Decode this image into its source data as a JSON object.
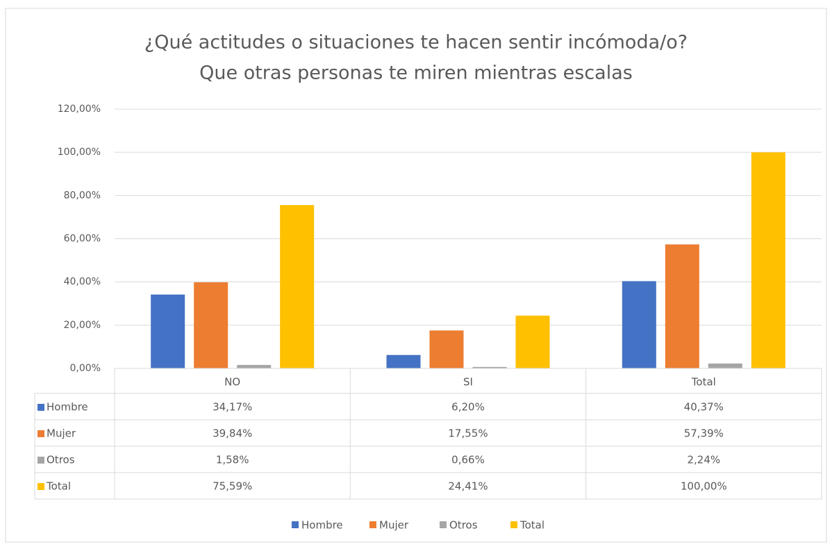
{
  "chart_data": {
    "type": "bar",
    "title": "¿Qué actitudes o situaciones te hacen sentir incómoda/o?",
    "subtitle": "Que otras personas te miren mientras escalas",
    "categories": [
      "NO",
      "SI",
      "Total"
    ],
    "series": [
      {
        "name": "Hombre",
        "color": "#4472c4",
        "values": [
          34.17,
          6.2,
          40.37
        ],
        "value_labels": [
          "34,17%",
          "6,20%",
          "40,37%"
        ]
      },
      {
        "name": "Mujer",
        "color": "#ed7d31",
        "values": [
          39.84,
          17.55,
          57.39
        ],
        "value_labels": [
          "39,84%",
          "17,55%",
          "57,39%"
        ]
      },
      {
        "name": "Otros",
        "color": "#a5a5a5",
        "values": [
          1.58,
          0.66,
          2.24
        ],
        "value_labels": [
          "1,58%",
          "0,66%",
          "2,24%"
        ]
      },
      {
        "name": "Total",
        "color": "#ffc000",
        "values": [
          75.59,
          24.41,
          100.0
        ],
        "value_labels": [
          "75,59%",
          "24,41%",
          "100,00%"
        ]
      }
    ],
    "ylim": [
      0,
      120
    ],
    "yticks": [
      {
        "value": 0,
        "label": "0,00%"
      },
      {
        "value": 20,
        "label": "20,00%"
      },
      {
        "value": 40,
        "label": "40,00%"
      },
      {
        "value": 60,
        "label": "60,00%"
      },
      {
        "value": 80,
        "label": "80,00%"
      },
      {
        "value": 100,
        "label": "100,00%"
      },
      {
        "value": 120,
        "label": "120,00%"
      }
    ],
    "grid": true,
    "legend": "bottom"
  }
}
